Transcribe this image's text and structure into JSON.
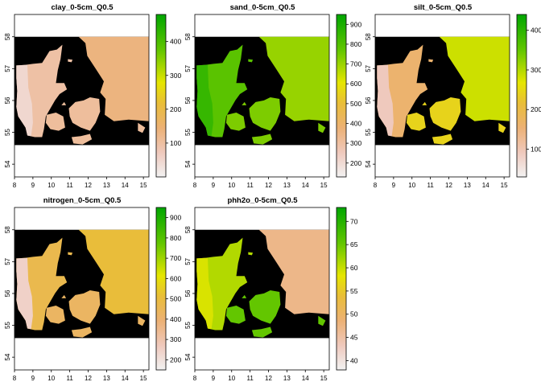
{
  "chart_data": [
    {
      "type": "heatmap",
      "title": "clay_0-5cm_Q0.5",
      "xlabel": "",
      "ylabel": "",
      "xlim": [
        8,
        15.3
      ],
      "ylim": [
        53.6,
        58.7
      ],
      "x_ticks": [
        "8",
        "9",
        "10",
        "11",
        "12",
        "13",
        "14",
        "15"
      ],
      "y_ticks": [
        "54",
        "55",
        "56",
        "57",
        "58"
      ],
      "legend": {
        "position": "right",
        "min": 0,
        "max": 480,
        "ticks": [
          "100",
          "200",
          "300",
          "400"
        ]
      },
      "colormap": "terrain (reversed)"
    },
    {
      "type": "heatmap",
      "title": "sand_0-5cm_Q0.5",
      "xlabel": "",
      "ylabel": "",
      "xlim": [
        8,
        15.3
      ],
      "ylim": [
        53.6,
        58.7
      ],
      "x_ticks": [
        "8",
        "9",
        "10",
        "11",
        "12",
        "13",
        "14",
        "15"
      ],
      "y_ticks": [
        "54",
        "55",
        "56",
        "57",
        "58"
      ],
      "legend": {
        "position": "right",
        "min": 130,
        "max": 950,
        "ticks": [
          "200",
          "300",
          "400",
          "500",
          "600",
          "700",
          "800",
          "900"
        ]
      },
      "colormap": "terrain (reversed)"
    },
    {
      "type": "heatmap",
      "title": "silt_0-5cm_Q0.5",
      "xlabel": "",
      "ylabel": "",
      "xlim": [
        8,
        15.3
      ],
      "ylim": [
        53.6,
        58.7
      ],
      "x_ticks": [
        "8",
        "9",
        "10",
        "11",
        "12",
        "13",
        "14",
        "15"
      ],
      "y_ticks": [
        "54",
        "55",
        "56",
        "57",
        "58"
      ],
      "legend": {
        "position": "right",
        "min": 30,
        "max": 440,
        "ticks": [
          "100",
          "200",
          "300",
          "400"
        ]
      },
      "colormap": "terrain (reversed)"
    },
    {
      "type": "heatmap",
      "title": "nitrogen_0-5cm_Q0.5",
      "xlabel": "",
      "ylabel": "",
      "xlim": [
        8,
        15.3
      ],
      "ylim": [
        53.6,
        58.7
      ],
      "x_ticks": [
        "8",
        "9",
        "10",
        "11",
        "12",
        "13",
        "14",
        "15"
      ],
      "y_ticks": [
        "54",
        "55",
        "56",
        "57",
        "58"
      ],
      "legend": {
        "position": "right",
        "min": 150,
        "max": 950,
        "ticks": [
          "200",
          "300",
          "400",
          "500",
          "600",
          "700",
          "800",
          "900"
        ]
      },
      "colormap": "terrain (reversed)"
    },
    {
      "type": "heatmap",
      "title": "phh2o_0-5cm_Q0.5",
      "xlabel": "",
      "ylabel": "",
      "xlim": [
        8,
        15.3
      ],
      "ylim": [
        53.6,
        58.7
      ],
      "x_ticks": [
        "8",
        "9",
        "10",
        "11",
        "12",
        "13",
        "14",
        "15"
      ],
      "y_ticks": [
        "54",
        "55",
        "56",
        "57",
        "58"
      ],
      "legend": {
        "position": "right",
        "min": 38,
        "max": 73,
        "ticks": [
          "40",
          "45",
          "50",
          "55",
          "60",
          "65",
          "70"
        ]
      },
      "colormap": "terrain (reversed)"
    }
  ],
  "colors": {
    "background": "#000000",
    "frame": "#000000",
    "land_dark": "#00a600",
    "land_mid": "#e6e600",
    "land_light": "#f2f2f2"
  }
}
